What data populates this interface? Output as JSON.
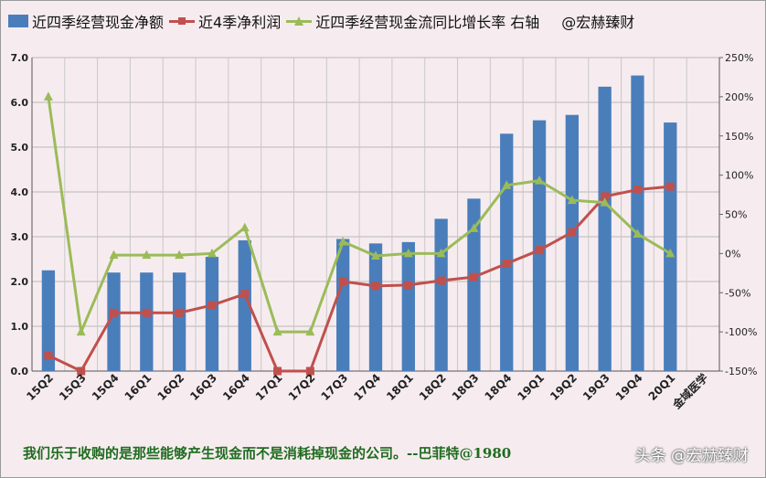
{
  "legend": {
    "bar_label": "近四季经营现金净额",
    "red_label": "近4季净利润",
    "green_label": "近四季经营现金流同比增长率 右轴",
    "watermark": "@宏赫臻财"
  },
  "footer": {
    "quote": "我们乐于收购的是那些能够产生现金而不是消耗掉现金的公司。--巴菲特@1980",
    "brand": "头条 @宏赫臻财"
  },
  "chart_data": {
    "type": "bar",
    "categories": [
      "15Q2",
      "15Q3",
      "15Q4",
      "16Q1",
      "16Q2",
      "16Q3",
      "16Q4",
      "17Q1",
      "17Q2",
      "17Q3",
      "17Q4",
      "18Q1",
      "18Q2",
      "18Q3",
      "18Q4",
      "19Q1",
      "19Q2",
      "19Q3",
      "19Q4",
      "20Q1"
    ],
    "series": [
      {
        "name": "近四季经营现金净额",
        "type": "bar",
        "axis": "left",
        "color": "#4a7ebb",
        "values": [
          2.25,
          null,
          2.2,
          2.2,
          2.2,
          2.55,
          2.92,
          null,
          null,
          2.95,
          2.85,
          2.88,
          3.4,
          3.85,
          5.3,
          5.6,
          5.72,
          6.35,
          6.6,
          5.55
        ]
      },
      {
        "name": "近4季净利润",
        "type": "line",
        "axis": "left",
        "color": "#c0504d",
        "marker": "square",
        "values": [
          0.35,
          0.0,
          1.3,
          1.3,
          1.3,
          1.47,
          1.72,
          0.0,
          0.0,
          2.0,
          1.9,
          1.92,
          2.02,
          2.1,
          2.4,
          2.7,
          3.1,
          3.9,
          4.05,
          4.12
        ]
      },
      {
        "name": "近四季经营现金流同比增长率 右轴",
        "type": "line",
        "axis": "right",
        "color": "#9bbb59",
        "marker": "triangle",
        "values": [
          200,
          -100,
          -2,
          -2,
          -2,
          0,
          33,
          -100,
          -100,
          15,
          -3,
          0,
          0,
          32,
          87,
          93,
          68,
          65,
          25,
          0
        ]
      }
    ],
    "extra_x_label": "金域医学",
    "y_left": {
      "min": 0,
      "max": 7,
      "step": 1,
      "tick_labels": [
        "0.0",
        "1.0",
        "2.0",
        "3.0",
        "4.0",
        "5.0",
        "6.0",
        "7.0"
      ]
    },
    "y_right": {
      "min": -150,
      "max": 250,
      "step": 50,
      "tick_labels": [
        "-150%",
        "-100%",
        "-50%",
        "0%",
        "50%",
        "100%",
        "150%",
        "200%",
        "250%"
      ]
    },
    "grid": true,
    "legend_position": "top"
  }
}
